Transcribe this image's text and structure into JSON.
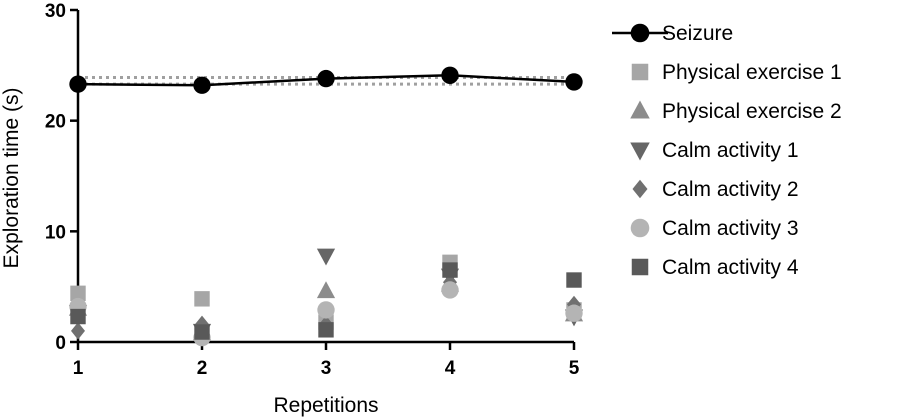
{
  "chart_data": {
    "type": "scatter",
    "xlabel": "Repetitions",
    "ylabel": "Exploration time (s)",
    "x": [
      1,
      2,
      3,
      4,
      5
    ],
    "xlim": [
      1,
      5
    ],
    "ylim": [
      0,
      30
    ],
    "yticks": [
      0,
      10,
      20,
      30
    ],
    "xticks": [
      1,
      2,
      3,
      4,
      5
    ],
    "legend_position": "right",
    "reference_band": {
      "lower": 23.3,
      "upper": 23.9
    },
    "series": [
      {
        "name": "Seizure",
        "marker": "circle",
        "connected": true,
        "color": "#000000",
        "values": [
          23.3,
          23.2,
          23.8,
          24.1,
          23.5
        ]
      },
      {
        "name": "Physical exercise 1",
        "marker": "square",
        "color": "#a6a6a6",
        "values": [
          4.4,
          3.9,
          1.8,
          7.2,
          2.9
        ]
      },
      {
        "name": "Physical exercise 2",
        "marker": "triangle-up",
        "color": "#8c8c8c",
        "values": [
          3.0,
          0.8,
          4.6,
          5.2,
          2.5
        ]
      },
      {
        "name": "Calm activity 1",
        "marker": "triangle-down",
        "color": "#666666",
        "values": [
          2.7,
          1.0,
          7.8,
          6.0,
          2.3
        ]
      },
      {
        "name": "Calm activity 2",
        "marker": "diamond",
        "color": "#707070",
        "values": [
          1.0,
          1.6,
          1.6,
          5.4,
          3.4
        ]
      },
      {
        "name": "Calm activity 3",
        "marker": "circle",
        "color": "#b4b4b4",
        "values": [
          3.2,
          0.4,
          2.9,
          4.7,
          2.6
        ]
      },
      {
        "name": "Calm activity 4",
        "marker": "square",
        "color": "#595959",
        "values": [
          2.3,
          0.9,
          1.1,
          6.5,
          5.6
        ]
      }
    ]
  }
}
